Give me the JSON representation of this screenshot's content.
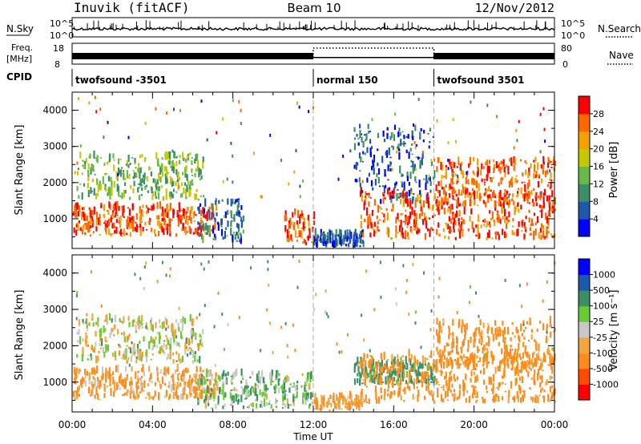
{
  "header": {
    "station": "Inuvik (fitACF)",
    "beam": "Beam 10",
    "date": "12/Nov/2012"
  },
  "strips": {
    "nsky_label": "N.Sky",
    "nsky_top_tick": "10^5",
    "nsky_bottom_tick": "10^0",
    "nsearch_label": "N.Search",
    "nsearch_top_tick": "10^5",
    "nsearch_bottom_tick": "10^0",
    "freq_label_1": "Freq.",
    "freq_label_2": "[MHz]",
    "freq_top_tick": "18",
    "freq_bottom_tick": "8",
    "nave_label": "Nave",
    "nave_top_tick": "80",
    "nave_bottom_tick": "0",
    "cpid_label": "CPID",
    "cpid_segments": [
      {
        "label": "twofsound -3501",
        "start_h": 0,
        "end_h": 12
      },
      {
        "label": "normal 150",
        "start_h": 12,
        "end_h": 18
      },
      {
        "label": "twofsound 3501",
        "start_h": 18,
        "end_h": 24
      }
    ]
  },
  "chart_data": [
    {
      "type": "heatmap",
      "name": "power_panel",
      "xlabel": "",
      "ylabel": "Slant Range [km]",
      "x_unit": "hours UT",
      "xlim": [
        0,
        24
      ],
      "ylim": [
        180,
        4500
      ],
      "y_ticks": [
        "1000",
        "2000",
        "3000",
        "4000"
      ],
      "colorbar": {
        "label": "Power [dB]",
        "ticks": [
          "4",
          "8",
          "12",
          "16",
          "20",
          "24",
          "28"
        ],
        "range": [
          0,
          30
        ],
        "colors": [
          "#0000ff",
          "#1d59a8",
          "#3c8f64",
          "#6ab848",
          "#c8c800",
          "#f5a000",
          "#ff6800",
          "#ff0000"
        ]
      },
      "regions": [
        {
          "x": [
            0.0,
            7.2
          ],
          "y": [
            500,
            1300
          ],
          "value": 27
        },
        {
          "x": [
            0.2,
            6.5
          ],
          "y": [
            1500,
            2700
          ],
          "value": 14
        },
        {
          "x": [
            6.2,
            8.5
          ],
          "y": [
            300,
            1500
          ],
          "value": 8
        },
        {
          "x": [
            10.5,
            12.0
          ],
          "y": [
            250,
            1100
          ],
          "value": 27
        },
        {
          "x": [
            12.0,
            14.5
          ],
          "y": [
            200,
            550
          ],
          "value": 6
        },
        {
          "x": [
            14.0,
            18.0
          ],
          "y": [
            1400,
            3500
          ],
          "value": 6
        },
        {
          "x": [
            14.3,
            24.0
          ],
          "y": [
            400,
            1700
          ],
          "value": 27
        },
        {
          "x": [
            18.0,
            24.0
          ],
          "y": [
            1300,
            2600
          ],
          "value": 26
        }
      ]
    },
    {
      "type": "heatmap",
      "name": "velocity_panel",
      "xlabel": "Time UT",
      "ylabel": "Slant Range [km]",
      "x_unit": "hours UT",
      "xlim": [
        0,
        24
      ],
      "ylim": [
        180,
        4500
      ],
      "x_ticks": [
        "00:00",
        "04:00",
        "08:00",
        "12:00",
        "16:00",
        "20:00",
        "00:00"
      ],
      "y_ticks": [
        "1000",
        "2000",
        "3000",
        "4000"
      ],
      "colorbar": {
        "label": "Velocity [m s⁻¹]",
        "ticks": [
          "-1000",
          "-500",
          "-100",
          "-25",
          "25",
          "100",
          "500",
          "1000"
        ],
        "colors": [
          "#ff0000",
          "#ff4a00",
          "#ff8c1a",
          "#f2a640",
          "#c8c8c8",
          "#66cc33",
          "#3c8f64",
          "#1d59a8",
          "#0000ff"
        ]
      },
      "regions": [
        {
          "x": [
            0.0,
            7.2
          ],
          "y": [
            500,
            1300
          ],
          "value": -120
        },
        {
          "x": [
            0.2,
            6.5
          ],
          "y": [
            1500,
            2700
          ],
          "value": 0
        },
        {
          "x": [
            6.2,
            12.0
          ],
          "y": [
            250,
            1200
          ],
          "value": 80
        },
        {
          "x": [
            12.0,
            14.5
          ],
          "y": [
            200,
            550
          ],
          "value": -100
        },
        {
          "x": [
            14.0,
            18.0
          ],
          "y": [
            900,
            1500
          ],
          "value": 200
        },
        {
          "x": [
            14.3,
            24.0
          ],
          "y": [
            400,
            1700
          ],
          "value": -180
        },
        {
          "x": [
            18.0,
            24.0
          ],
          "y": [
            1300,
            2600
          ],
          "value": -200
        }
      ]
    }
  ]
}
